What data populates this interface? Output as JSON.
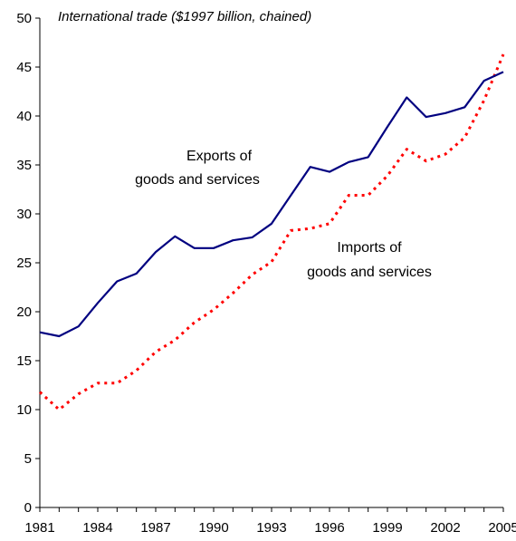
{
  "chart_data": {
    "type": "line",
    "title": "International trade ($1997 billion, chained)",
    "x": [
      1981,
      1982,
      1983,
      1984,
      1985,
      1986,
      1987,
      1988,
      1989,
      1990,
      1991,
      1992,
      1993,
      1994,
      1995,
      1996,
      1997,
      1998,
      1999,
      2000,
      2001,
      2002,
      2003,
      2004,
      2005
    ],
    "x_tick_labels": [
      "1981",
      "1984",
      "1987",
      "1990",
      "1993",
      "1996",
      "1999",
      "2002",
      "2005"
    ],
    "y_tick_labels": [
      "0",
      "5",
      "10",
      "15",
      "20",
      "25",
      "30",
      "35",
      "40",
      "45",
      "50"
    ],
    "xlim": [
      1981,
      2005
    ],
    "ylim": [
      0,
      50
    ],
    "grid": false,
    "legend": "none",
    "series": [
      {
        "name": "Exports of goods and services",
        "style": "solid",
        "color": "#000080",
        "values": [
          17.9,
          17.5,
          18.5,
          20.9,
          23.1,
          23.9,
          26.1,
          27.7,
          26.5,
          26.5,
          27.3,
          27.6,
          29.0,
          31.9,
          34.8,
          34.3,
          35.3,
          35.8,
          38.9,
          41.9,
          39.9,
          40.3,
          40.9,
          43.6,
          44.5
        ]
      },
      {
        "name": "Imports of goods and services",
        "style": "dashed",
        "color": "#ff0000",
        "values": [
          11.8,
          10.0,
          11.6,
          12.7,
          12.7,
          14.0,
          15.9,
          17.1,
          18.9,
          20.2,
          21.9,
          23.8,
          25.1,
          28.3,
          28.5,
          29.0,
          31.9,
          31.9,
          33.9,
          36.6,
          35.4,
          36.1,
          37.8,
          41.6,
          46.3
        ]
      }
    ],
    "annotations": [
      {
        "lines": [
          "Exports of",
          "goods and services"
        ],
        "series": "Exports of goods and services"
      },
      {
        "lines": [
          "Imports of",
          "goods and services"
        ],
        "series": "Imports of goods and services"
      }
    ]
  }
}
